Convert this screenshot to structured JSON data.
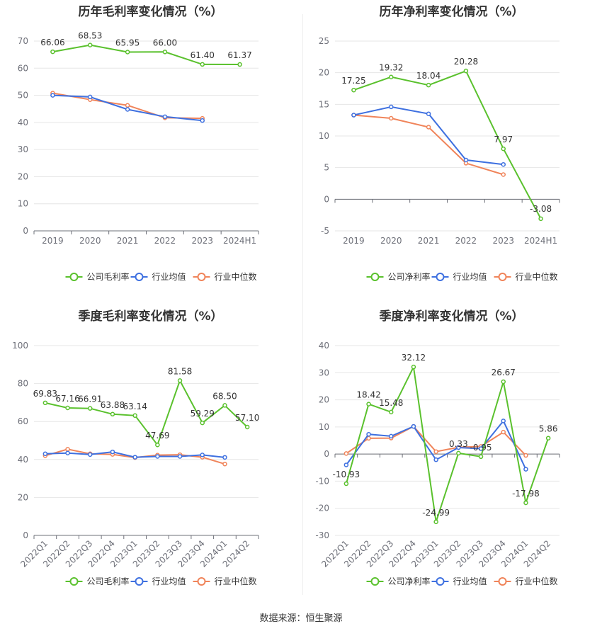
{
  "source": "数据来源：恒生聚源",
  "colors": {
    "company": "#5ac12d",
    "avg": "#3e70e0",
    "median": "#f0845a"
  },
  "legend": {
    "avg": "行业均值",
    "median": "行业中位数"
  },
  "chart_data": [
    {
      "type": "line",
      "title": "历年毛利率变化情况（%）",
      "categories": [
        "2019",
        "2020",
        "2021",
        "2022",
        "2023",
        "2024H1"
      ],
      "ylim": [
        0,
        70
      ],
      "yticks": [
        0,
        10,
        20,
        30,
        40,
        50,
        60,
        70
      ],
      "label_rotate": false,
      "series": [
        {
          "name": "公司毛利率",
          "key": "company",
          "values": [
            66.06,
            68.53,
            65.95,
            66.0,
            61.4,
            61.37
          ],
          "labels": [
            "66.06",
            "68.53",
            "65.95",
            "66.00",
            "61.40",
            "61.37"
          ]
        },
        {
          "name": "行业均值",
          "key": "avg",
          "values": [
            50.0,
            49.4,
            44.8,
            42.1,
            40.7,
            null
          ]
        },
        {
          "name": "行业中位数",
          "key": "median",
          "values": [
            50.8,
            48.4,
            46.3,
            41.7,
            41.5,
            null
          ]
        }
      ]
    },
    {
      "type": "line",
      "title": "历年净利率变化情况（%）",
      "categories": [
        "2019",
        "2020",
        "2021",
        "2022",
        "2023",
        "2024H1"
      ],
      "ylim": [
        -5,
        25
      ],
      "yticks": [
        -5,
        0,
        5,
        10,
        15,
        20,
        25
      ],
      "label_rotate": false,
      "series": [
        {
          "name": "公司净利率",
          "key": "company",
          "values": [
            17.25,
            19.32,
            18.04,
            20.28,
            7.97,
            -3.08
          ],
          "labels": [
            "17.25",
            "19.32",
            "18.04",
            "20.28",
            "7.97",
            "-3.08"
          ]
        },
        {
          "name": "行业均值",
          "key": "avg",
          "values": [
            13.3,
            14.6,
            13.5,
            6.2,
            5.5,
            null
          ]
        },
        {
          "name": "行业中位数",
          "key": "median",
          "values": [
            13.3,
            12.8,
            11.4,
            5.7,
            3.9,
            null
          ]
        }
      ]
    },
    {
      "type": "line",
      "title": "季度毛利率变化情况（%）",
      "categories": [
        "2022Q1",
        "2022Q2",
        "2022Q3",
        "2022Q4",
        "2023Q1",
        "2023Q2",
        "2023Q3",
        "2023Q4",
        "2024Q1",
        "2024Q2"
      ],
      "ylim": [
        0,
        100
      ],
      "yticks": [
        0,
        20,
        40,
        60,
        80,
        100
      ],
      "label_rotate": true,
      "series": [
        {
          "name": "公司毛利率",
          "key": "company",
          "values": [
            69.83,
            67.16,
            66.91,
            63.88,
            63.14,
            47.69,
            81.58,
            59.29,
            68.5,
            57.1
          ],
          "labels": [
            "69.83",
            "67.16",
            "66.91",
            "63.88",
            "63.14",
            "47.69",
            "81.58",
            "59.29",
            "68.50",
            "57.10"
          ]
        },
        {
          "name": "行业均值",
          "key": "avg",
          "values": [
            43.0,
            43.4,
            42.6,
            44.0,
            41.2,
            41.6,
            41.6,
            42.4,
            41.1,
            null
          ]
        },
        {
          "name": "行业中位数",
          "key": "median",
          "values": [
            42.0,
            45.4,
            43.0,
            42.7,
            41.0,
            42.3,
            42.5,
            41.2,
            37.6,
            null
          ]
        }
      ]
    },
    {
      "type": "line",
      "title": "季度净利率变化情况（%）",
      "categories": [
        "2022Q1",
        "2022Q2",
        "2022Q3",
        "2022Q4",
        "2023Q1",
        "2023Q2",
        "2023Q3",
        "2023Q4",
        "2024Q1",
        "2024Q2"
      ],
      "ylim": [
        -30,
        40
      ],
      "yticks": [
        -30,
        -20,
        -10,
        0,
        10,
        20,
        30,
        40
      ],
      "label_rotate": true,
      "series": [
        {
          "name": "公司净利率",
          "key": "company",
          "values": [
            -10.93,
            18.42,
            15.48,
            32.12,
            -24.99,
            0.33,
            -0.95,
            26.67,
            -17.98,
            5.86
          ],
          "labels": [
            "-10.93",
            "18.42",
            "15.48",
            "32.12",
            "-24.99",
            "0.33",
            "-0.95",
            "26.67",
            "-17.98",
            "5.86"
          ]
        },
        {
          "name": "行业均值",
          "key": "avg",
          "values": [
            -4.0,
            7.3,
            6.6,
            10.2,
            -2.1,
            2.4,
            2.0,
            12.2,
            -5.6,
            null
          ]
        },
        {
          "name": "行业中位数",
          "key": "median",
          "values": [
            0.2,
            5.8,
            5.9,
            10.2,
            0.9,
            2.5,
            2.8,
            8.1,
            -0.5,
            null
          ]
        }
      ]
    }
  ]
}
